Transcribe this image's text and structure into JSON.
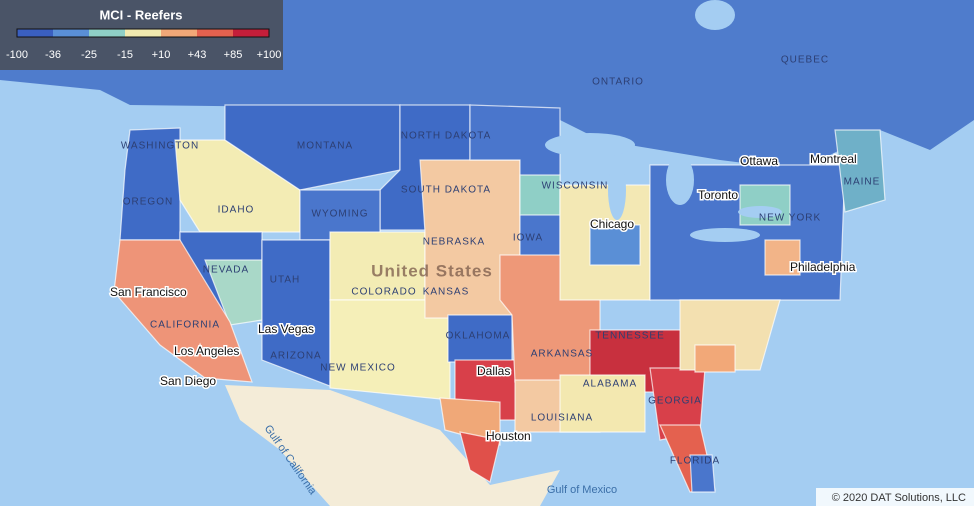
{
  "legend": {
    "title": "MCI - Reefers",
    "labels": [
      "-100",
      "-36",
      "-25",
      "-15",
      "+10",
      "+43",
      "+85",
      "+100"
    ],
    "colors": [
      "#3a5fc0",
      "#5a8fd6",
      "#8fcfc6",
      "#f2eab0",
      "#f2a878",
      "#e4614f",
      "#c41e3a"
    ]
  },
  "places": [
    "WASHINGTON",
    "OREGON",
    "IDAHO",
    "MONTANA",
    "NORTH DAKOTA",
    "SOUTH DAKOTA",
    "WYOMING",
    "NEBRASKA",
    "NEVADA",
    "UTAH",
    "COLORADO",
    "KANSAS",
    "CALIFORNIA",
    "ARIZONA",
    "NEW MEXICO",
    "OKLAHOMA",
    "ARKANSAS",
    "LOUISIANA",
    "ALABAMA",
    "GEORGIA",
    "FLORIDA",
    "TENNESSEE",
    "WISCONSIN",
    "IOWA",
    "MAINE",
    "NEW YORK",
    "ONTARIO",
    "QUEBEC",
    "United States",
    "San Francisco",
    "Las Vegas",
    "Los Angeles",
    "San Diego",
    "Dallas",
    "Houston",
    "Chicago",
    "Toronto",
    "Montreal",
    "Ottawa",
    "Philadelphia",
    "Gulf of California",
    "Gulf of Mexico"
  ],
  "copyright": "© 2020 DAT Solutions, LLC"
}
